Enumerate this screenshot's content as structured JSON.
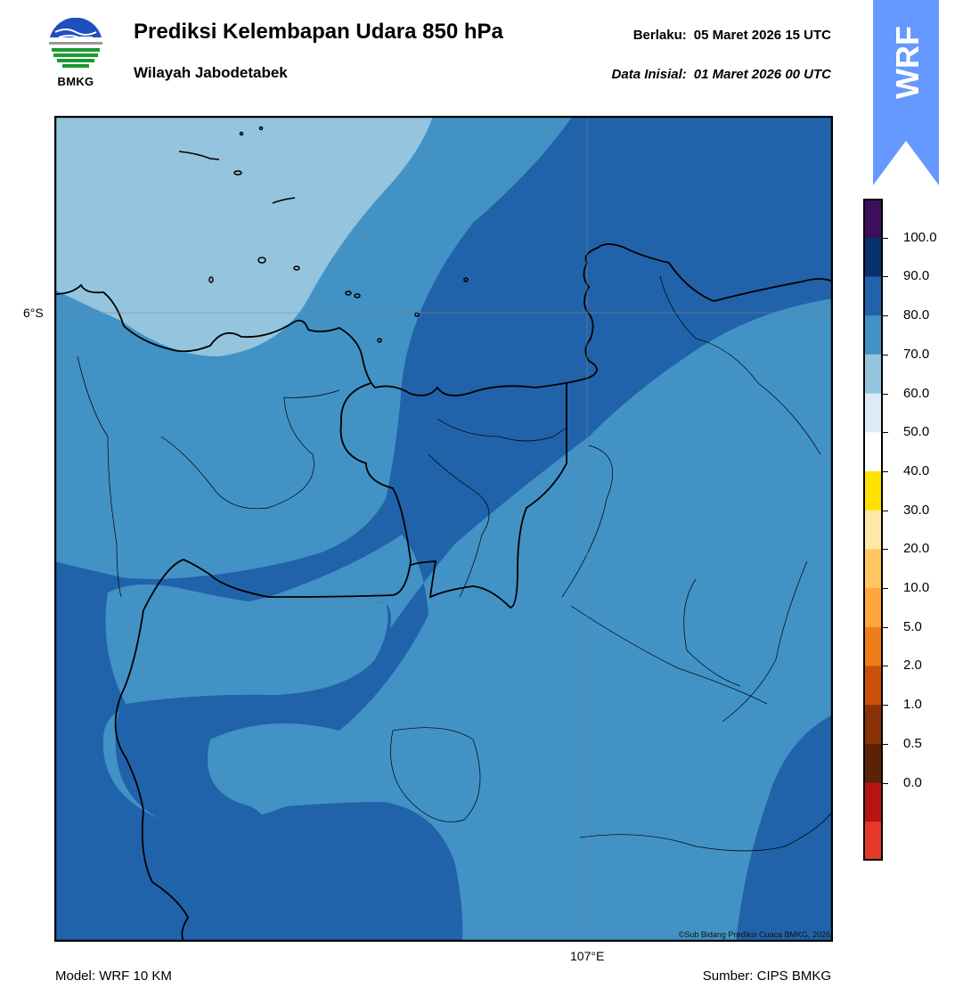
{
  "header": {
    "title": "Prediksi Kelembapan Udara 850 hPa",
    "subtitle": "Wilayah Jabodetabek",
    "valid_label": "Berlaku:",
    "valid_value": "05 Maret 2026 15 UTC",
    "init_label": "Data Inisial:",
    "init_value": "01 Maret 2026 00 UTC"
  },
  "logo": {
    "text": "BMKG",
    "icon": "bmkg-logo-icon"
  },
  "badge": {
    "text": "WRF",
    "color": "#6699ff"
  },
  "map": {
    "lat_label": "6°S",
    "lon_label": "107°E",
    "copyright": "©Sub Bidang Prediksi Cuaca BMKG, 2026",
    "fill_colors": {
      "60-70": "#94c4de",
      "70-80": "#4292c6",
      "80-90": "#2163aa"
    }
  },
  "colorbar": {
    "ticks": [
      "100.0",
      "90.0",
      "80.0",
      "70.0",
      "60.0",
      "50.0",
      "40.0",
      "30.0",
      "20.0",
      "10.0",
      "5.0",
      "2.0",
      "1.0",
      "0.5",
      "0.0"
    ],
    "colors": [
      "#3b0f5c",
      "#08306b",
      "#2163aa",
      "#4292c6",
      "#94c4de",
      "#deebf7",
      "#ffffff",
      "#ffe100",
      "#ffe8a8",
      "#ffc660",
      "#ffa640",
      "#ee7d1a",
      "#c9500b",
      "#8a3207",
      "#5c2208",
      "#b81414",
      "#e6382a"
    ]
  },
  "footer": {
    "model": "Model: WRF 10 KM",
    "source": "Sumber: CIPS BMKG"
  }
}
